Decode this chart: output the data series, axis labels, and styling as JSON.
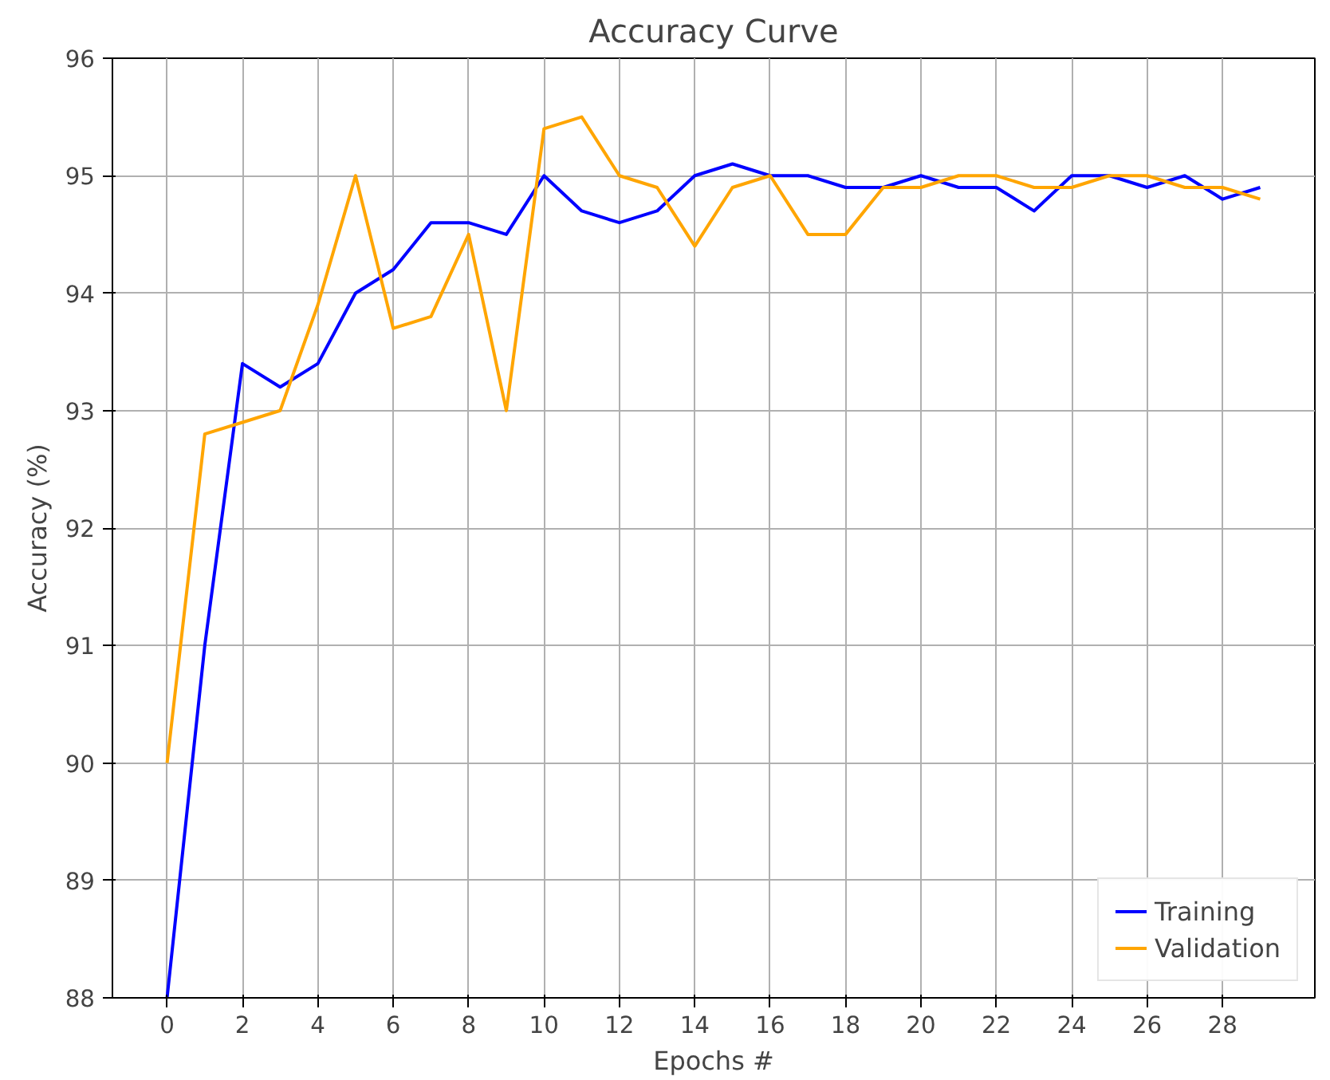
{
  "chart_data": {
    "type": "line",
    "title": "Accuracy Curve",
    "xlabel": "Epochs #",
    "ylabel": "Accuracy (%)",
    "x": [
      0,
      1,
      2,
      3,
      4,
      5,
      6,
      7,
      8,
      9,
      10,
      11,
      12,
      13,
      14,
      15,
      16,
      17,
      18,
      19,
      20,
      21,
      22,
      23,
      24,
      25,
      26,
      27,
      28,
      29
    ],
    "series": [
      {
        "name": "Training",
        "color": "#0000ff",
        "values": [
          88.0,
          91.0,
          93.4,
          93.2,
          93.4,
          94.0,
          94.2,
          94.6,
          94.6,
          94.5,
          95.0,
          94.7,
          94.6,
          94.7,
          95.0,
          95.1,
          95.0,
          95.0,
          94.9,
          94.9,
          95.0,
          94.9,
          94.9,
          94.7,
          95.0,
          95.0,
          94.9,
          95.0,
          94.8,
          94.9
        ]
      },
      {
        "name": "Validation",
        "color": "#ffa500",
        "values": [
          90.0,
          92.8,
          92.9,
          93.0,
          93.9,
          95.0,
          93.7,
          93.8,
          94.5,
          93.0,
          95.4,
          95.5,
          95.0,
          94.9,
          94.4,
          94.9,
          95.0,
          94.5,
          94.5,
          94.9,
          94.9,
          95.0,
          95.0,
          94.9,
          94.9,
          95.0,
          95.0,
          94.9,
          94.9,
          94.8
        ]
      }
    ],
    "xlim": [
      -1.45,
      30.45
    ],
    "ylim": [
      88,
      96
    ],
    "xticks": [
      0,
      2,
      4,
      6,
      8,
      10,
      12,
      14,
      16,
      18,
      20,
      22,
      24,
      26,
      28
    ],
    "yticks": [
      88,
      89,
      90,
      91,
      92,
      93,
      94,
      95,
      96
    ],
    "grid": true,
    "legend": "bottom right",
    "line_style": "solid",
    "marker": "none"
  }
}
